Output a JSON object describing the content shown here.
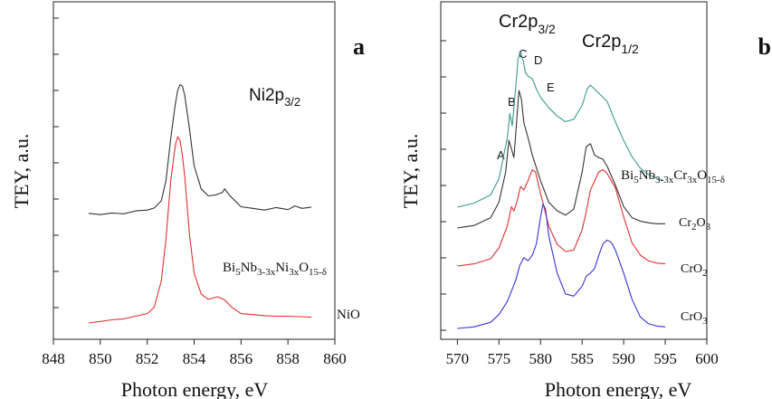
{
  "chart_data": [
    {
      "panel": "a",
      "type": "line",
      "title": "Ni2p3/2",
      "title_main": "Ni2p",
      "title_sub": "3/2",
      "xlabel": "Photon energy, eV",
      "ylabel": "TEY, a.u.",
      "xlim": [
        848,
        860
      ],
      "x_ticks": [
        "848",
        "850",
        "852",
        "854",
        "856",
        "858",
        "860"
      ],
      "y_ticks_labeled": false,
      "grid": false,
      "series": [
        {
          "name": "Bi5Nb3-3xNi3xO15-δ",
          "color": "#333333",
          "label_parts": [
            [
              "Bi",
              ""
            ],
            [
              "5",
              "sub"
            ],
            [
              "Nb",
              ""
            ],
            [
              "3-3x",
              "sub"
            ],
            [
              "Ni",
              ""
            ],
            [
              "3x",
              "sub"
            ],
            [
              "O",
              ""
            ],
            [
              "15-δ",
              "sub"
            ]
          ],
          "x": [
            849.5,
            850.0,
            850.5,
            851.0,
            851.5,
            852.0,
            852.3,
            852.6,
            852.8,
            853.0,
            853.2,
            853.3,
            853.4,
            853.5,
            853.6,
            853.8,
            854.0,
            854.3,
            854.6,
            854.9,
            855.2,
            855.3,
            855.5,
            856.0,
            856.5,
            857.0,
            857.5,
            858.0,
            858.3,
            858.6,
            859.0
          ],
          "y": [
            0.96,
            0.93,
            0.97,
            0.95,
            1.02,
            1.04,
            1.09,
            1.26,
            1.75,
            2.75,
            3.6,
            3.92,
            4.05,
            4.02,
            3.8,
            3.0,
            2.1,
            1.55,
            1.38,
            1.4,
            1.46,
            1.55,
            1.4,
            1.12,
            1.08,
            1.04,
            1.1,
            1.05,
            1.14,
            1.08,
            1.11
          ]
        },
        {
          "name": "NiO",
          "color": "#e03030",
          "label_parts": [
            [
              "NiO",
              ""
            ]
          ],
          "x": [
            849.5,
            850.0,
            850.5,
            851.0,
            851.5,
            852.0,
            852.3,
            852.6,
            852.8,
            853.0,
            853.2,
            853.3,
            853.4,
            853.5,
            853.6,
            853.8,
            854.0,
            854.3,
            854.6,
            855.0,
            855.3,
            855.6,
            856.0,
            856.5,
            857.0,
            857.5,
            858.0,
            858.5,
            859.0
          ],
          "y": [
            0.0,
            0.03,
            0.06,
            0.08,
            0.13,
            0.18,
            0.3,
            0.8,
            1.6,
            2.7,
            3.4,
            3.55,
            3.48,
            3.2,
            2.8,
            1.7,
            0.95,
            0.55,
            0.45,
            0.5,
            0.44,
            0.3,
            0.18,
            0.16,
            0.14,
            0.13,
            0.13,
            0.12,
            0.11
          ]
        }
      ]
    },
    {
      "panel": "b",
      "type": "line",
      "xlabel": "Photon energy, eV",
      "ylabel": "TEY, a.u.",
      "xlim": [
        568,
        600
      ],
      "x_ticks": [
        "570",
        "575",
        "580",
        "585",
        "590",
        "595",
        "600"
      ],
      "y_ticks_labeled": false,
      "grid": false,
      "edge_labels": [
        {
          "main": "Cr2p",
          "sub": "3/2"
        },
        {
          "main": "Cr2p",
          "sub": "1/2"
        }
      ],
      "peak_labels": [
        "A",
        "B",
        "C",
        "D",
        "E"
      ],
      "series": [
        {
          "name": "Bi5Nb3-3xCr3xO15-δ",
          "color": "#3a9a90",
          "label_parts": [
            [
              "Bi",
              ""
            ],
            [
              "5",
              "sub"
            ],
            [
              "Nb",
              ""
            ],
            [
              "3-3x",
              "sub"
            ],
            [
              "Cr",
              ""
            ],
            [
              "3x",
              "sub"
            ],
            [
              "O",
              ""
            ],
            [
              "15-δ",
              "sub"
            ]
          ],
          "x": [
            570.0,
            572.0,
            574.0,
            575.0,
            576.0,
            576.3,
            576.6,
            577.0,
            577.3,
            577.6,
            577.9,
            578.2,
            578.6,
            579.0,
            579.5,
            580.0,
            581.0,
            582.0,
            583.0,
            584.0,
            585.0,
            585.6,
            586.0,
            586.5,
            587.0,
            588.0,
            589.0,
            590.0,
            591.0,
            592.0,
            593.0,
            594.0,
            594.8
          ],
          "y": [
            0.0,
            0.05,
            0.15,
            0.35,
            0.85,
            1.15,
            1.0,
            1.45,
            1.82,
            1.9,
            1.8,
            1.65,
            1.6,
            1.58,
            1.45,
            1.35,
            1.22,
            1.12,
            1.05,
            1.08,
            1.25,
            1.45,
            1.5,
            1.45,
            1.4,
            1.3,
            1.05,
            0.82,
            0.62,
            0.48,
            0.4,
            0.35,
            0.33
          ]
        },
        {
          "name": "Cr2O3",
          "color": "#333333",
          "label_parts": [
            [
              "Cr",
              ""
            ],
            [
              "2",
              "sub"
            ],
            [
              "O",
              ""
            ],
            [
              "3",
              "sub"
            ]
          ],
          "x": [
            570.0,
            572.0,
            574.0,
            575.0,
            575.8,
            576.2,
            576.5,
            576.8,
            577.1,
            577.4,
            577.7,
            578.0,
            578.5,
            579.0,
            580.0,
            581.0,
            582.0,
            583.0,
            584.0,
            585.0,
            585.5,
            586.0,
            586.5,
            587.0,
            587.5,
            588.0,
            589.0,
            590.0,
            591.0,
            592.0,
            593.0,
            594.0,
            595.0
          ],
          "y": [
            0.0,
            0.03,
            0.12,
            0.3,
            0.65,
            1.02,
            0.92,
            0.82,
            1.2,
            1.6,
            1.5,
            1.22,
            1.05,
            0.85,
            0.55,
            0.3,
            0.2,
            0.15,
            0.22,
            0.65,
            0.95,
            0.98,
            0.85,
            0.82,
            0.8,
            0.72,
            0.5,
            0.25,
            0.12,
            0.08,
            0.06,
            0.05,
            0.05
          ]
        },
        {
          "name": "CrO2",
          "color": "#e03030",
          "label_parts": [
            [
              "CrO",
              ""
            ],
            [
              "2",
              "sub"
            ]
          ],
          "x": [
            570.0,
            572.0,
            574.0,
            575.0,
            576.0,
            576.5,
            576.8,
            577.2,
            577.6,
            578.0,
            578.5,
            579.0,
            579.4,
            580.0,
            581.0,
            582.0,
            583.0,
            584.0,
            585.0,
            585.5,
            586.0,
            587.0,
            587.5,
            588.0,
            589.0,
            590.0,
            591.0,
            592.0,
            593.0,
            594.0,
            595.0
          ],
          "y": [
            0.0,
            0.03,
            0.1,
            0.25,
            0.55,
            0.82,
            0.76,
            0.9,
            1.1,
            1.05,
            1.18,
            1.33,
            1.3,
            1.0,
            0.55,
            0.3,
            0.2,
            0.22,
            0.5,
            0.75,
            1.05,
            1.3,
            1.33,
            1.28,
            1.08,
            0.68,
            0.32,
            0.15,
            0.07,
            0.04,
            0.03
          ]
        },
        {
          "name": "CrO3",
          "color": "#3333dd",
          "label_parts": [
            [
              "CrO",
              ""
            ],
            [
              "3",
              "sub"
            ]
          ],
          "x": [
            570.0,
            572.0,
            574.0,
            575.0,
            576.0,
            577.0,
            577.5,
            578.0,
            578.5,
            579.0,
            579.5,
            580.0,
            580.3,
            580.6,
            581.0,
            582.0,
            583.0,
            584.0,
            585.0,
            585.5,
            586.0,
            586.5,
            587.0,
            587.5,
            588.0,
            588.5,
            589.0,
            590.0,
            591.0,
            592.0,
            593.0,
            594.0,
            595.0
          ],
          "y": [
            0.0,
            0.02,
            0.08,
            0.18,
            0.35,
            0.62,
            0.82,
            0.92,
            0.88,
            0.95,
            1.1,
            1.45,
            1.62,
            1.55,
            1.2,
            0.72,
            0.45,
            0.42,
            0.55,
            0.68,
            0.72,
            0.78,
            0.95,
            1.1,
            1.15,
            1.12,
            1.02,
            0.72,
            0.38,
            0.15,
            0.06,
            0.03,
            0.02
          ]
        }
      ]
    }
  ]
}
